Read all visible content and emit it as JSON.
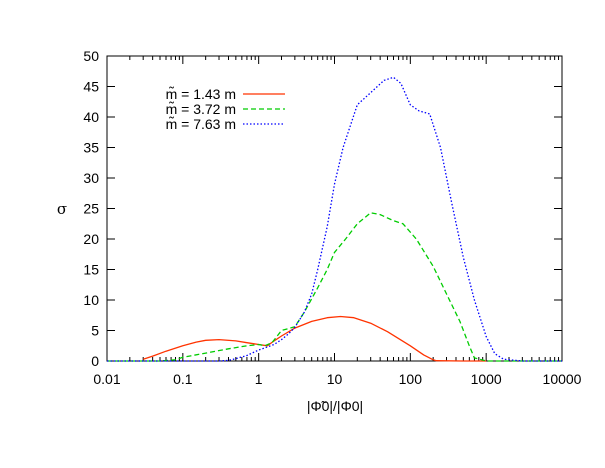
{
  "chart_data": {
    "type": "line",
    "title": "",
    "xlabel": "|Φ̃0|/|Φ0|",
    "ylabel": "σ",
    "xscale": "log",
    "xlim": [
      0.01,
      10000
    ],
    "ylim": [
      0,
      50
    ],
    "grid": false,
    "legend_position": "top-left",
    "x_ticks": [
      {
        "value": 0.01,
        "label": "0.01"
      },
      {
        "value": 0.1,
        "label": "0.1"
      },
      {
        "value": 1,
        "label": "1"
      },
      {
        "value": 10,
        "label": "10"
      },
      {
        "value": 100,
        "label": "100"
      },
      {
        "value": 1000,
        "label": "1000"
      },
      {
        "value": 10000,
        "label": "10000"
      }
    ],
    "y_ticks": [
      {
        "value": 0,
        "label": "0"
      },
      {
        "value": 5,
        "label": "5"
      },
      {
        "value": 10,
        "label": "10"
      },
      {
        "value": 15,
        "label": "15"
      },
      {
        "value": 20,
        "label": "20"
      },
      {
        "value": 25,
        "label": "25"
      },
      {
        "value": 30,
        "label": "30"
      },
      {
        "value": 35,
        "label": "35"
      },
      {
        "value": 40,
        "label": "40"
      },
      {
        "value": 45,
        "label": "45"
      },
      {
        "value": 50,
        "label": "50"
      }
    ],
    "series": [
      {
        "name": "m̃ = 1.43 m",
        "color": "#ff3300",
        "dash": "solid",
        "x": [
          0.03,
          0.04,
          0.06,
          0.1,
          0.15,
          0.2,
          0.3,
          0.5,
          0.7,
          1.0,
          1.3,
          1.6,
          2.0,
          3.0,
          5.0,
          8.0,
          12.0,
          18.0,
          30.0,
          50.0,
          100.0,
          150.0,
          200.0,
          220.0,
          500.0,
          1000.0
        ],
        "y": [
          0.3,
          0.8,
          1.6,
          2.5,
          3.1,
          3.4,
          3.5,
          3.3,
          3.0,
          2.7,
          2.5,
          3.3,
          4.1,
          5.4,
          6.5,
          7.1,
          7.3,
          7.1,
          6.2,
          4.8,
          2.5,
          1.0,
          0.2,
          0.05,
          0.0,
          0.0
        ]
      },
      {
        "name": "m̃ = 3.72 m",
        "color": "#00cc00",
        "dash": "dashed",
        "x": [
          0.01,
          0.05,
          0.08,
          0.1,
          0.2,
          0.4,
          0.7,
          1.0,
          1.2,
          1.5,
          2.0,
          3.0,
          4.0,
          6.0,
          8.0,
          10.0,
          14.0,
          20.0,
          30.0,
          40.0,
          60.0,
          80.0,
          120.0,
          200.0,
          300.0,
          450.0,
          600.0,
          700.0,
          1000.0,
          10000.0
        ],
        "y": [
          0.0,
          0.0,
          0.2,
          0.6,
          1.3,
          2.0,
          2.5,
          2.7,
          2.5,
          3.0,
          5.0,
          5.6,
          8.0,
          12.0,
          15.0,
          17.8,
          20.0,
          22.5,
          24.3,
          24.0,
          23.0,
          22.5,
          20.0,
          15.5,
          11.0,
          6.5,
          2.5,
          0.5,
          0.0,
          0.0
        ]
      },
      {
        "name": "m̃ = 7.63 m",
        "color": "#0000ff",
        "dash": "dotted",
        "x": [
          0.01,
          0.3,
          0.4,
          0.5,
          0.7,
          1.0,
          1.3,
          1.6,
          2.0,
          2.5,
          3.0,
          4.0,
          5.0,
          6.0,
          8.0,
          10.0,
          13.0,
          20.0,
          30.0,
          45.0,
          60.0,
          75.0,
          100.0,
          130.0,
          180.0,
          250.0,
          350.0,
          500.0,
          700.0,
          1000.0,
          1300.0,
          1700.0,
          3000.0,
          10000.0
        ],
        "y": [
          0.0,
          0.0,
          0.1,
          0.4,
          0.9,
          1.8,
          2.3,
          2.7,
          3.5,
          4.5,
          5.5,
          8.0,
          11.0,
          15.0,
          22.0,
          29.0,
          35.0,
          42.0,
          44.0,
          46.0,
          46.5,
          45.5,
          42.0,
          41.0,
          40.5,
          35.0,
          26.0,
          17.0,
          10.0,
          4.0,
          1.2,
          0.3,
          0.0,
          0.0
        ]
      }
    ]
  }
}
